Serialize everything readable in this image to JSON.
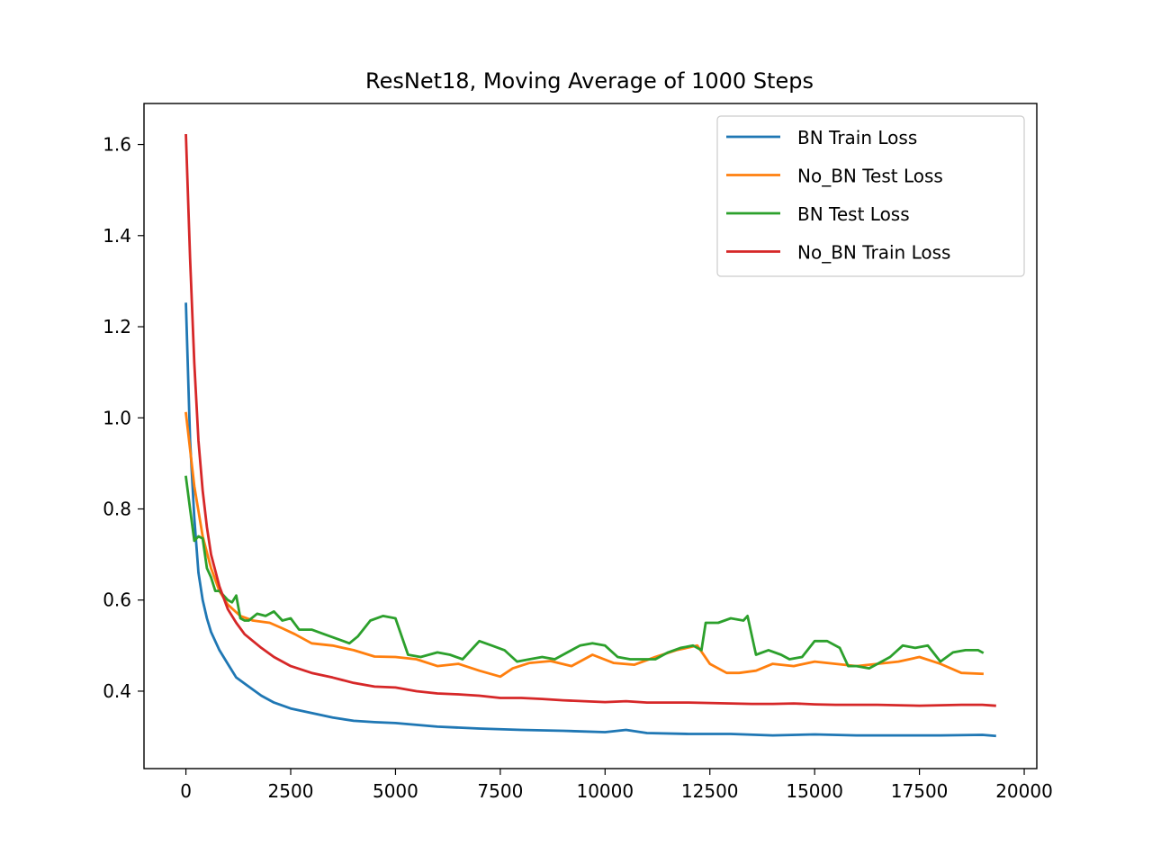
{
  "chart_data": {
    "type": "line",
    "title": "ResNet18, Moving Average of 1000 Steps",
    "xlabel": "",
    "ylabel": "",
    "xlim": [
      -1000,
      20300
    ],
    "ylim": [
      0.23,
      1.69
    ],
    "xticks": [
      0,
      2500,
      5000,
      7500,
      10000,
      12500,
      15000,
      17500,
      20000
    ],
    "xtick_labels": [
      "0",
      "2500",
      "5000",
      "7500",
      "10000",
      "12500",
      "15000",
      "17500",
      "20000"
    ],
    "yticks": [
      0.4,
      0.6,
      0.8,
      1.0,
      1.2,
      1.4,
      1.6
    ],
    "ytick_labels": [
      "0.4",
      "0.6",
      "0.8",
      "1.0",
      "1.2",
      "1.4",
      "1.6"
    ],
    "grid": false,
    "legend_position": "top-right",
    "series": [
      {
        "name": "BN Train Loss",
        "color": "#1f77b4",
        "x": [
          0,
          100,
          200,
          300,
          400,
          500,
          600,
          800,
          1000,
          1200,
          1500,
          1800,
          2100,
          2500,
          3000,
          3500,
          4000,
          4500,
          5000,
          5500,
          6000,
          7000,
          8000,
          9000,
          10000,
          10500,
          11000,
          12000,
          13000,
          14000,
          15000,
          16000,
          17000,
          18000,
          19000,
          19300
        ],
        "y": [
          1.25,
          0.95,
          0.78,
          0.66,
          0.6,
          0.56,
          0.53,
          0.49,
          0.46,
          0.43,
          0.41,
          0.39,
          0.375,
          0.362,
          0.352,
          0.342,
          0.335,
          0.332,
          0.33,
          0.326,
          0.322,
          0.318,
          0.315,
          0.313,
          0.31,
          0.315,
          0.308,
          0.306,
          0.306,
          0.303,
          0.305,
          0.303,
          0.303,
          0.303,
          0.304,
          0.302
        ]
      },
      {
        "name": "No_BN Test Loss",
        "color": "#ff7f0e",
        "x": [
          0,
          200,
          400,
          600,
          800,
          1000,
          1300,
          1600,
          2000,
          2300,
          2600,
          3000,
          3500,
          4000,
          4500,
          5000,
          5500,
          6000,
          6500,
          7000,
          7500,
          7800,
          8200,
          8700,
          9200,
          9700,
          10200,
          10700,
          11200,
          11700,
          12200,
          12500,
          12900,
          13200,
          13600,
          14000,
          14500,
          15000,
          15500,
          16000,
          16500,
          17000,
          17500,
          18000,
          18500,
          19000
        ],
        "y": [
          1.01,
          0.85,
          0.74,
          0.67,
          0.62,
          0.59,
          0.565,
          0.555,
          0.55,
          0.538,
          0.525,
          0.505,
          0.5,
          0.49,
          0.476,
          0.475,
          0.47,
          0.455,
          0.46,
          0.445,
          0.432,
          0.45,
          0.462,
          0.466,
          0.455,
          0.48,
          0.462,
          0.458,
          0.475,
          0.49,
          0.5,
          0.46,
          0.44,
          0.44,
          0.445,
          0.46,
          0.455,
          0.465,
          0.46,
          0.455,
          0.46,
          0.465,
          0.475,
          0.46,
          0.44,
          0.438
        ]
      },
      {
        "name": "BN Test Loss",
        "color": "#2ca02c",
        "x": [
          0,
          100,
          200,
          300,
          400,
          500,
          600,
          700,
          800,
          900,
          1000,
          1100,
          1200,
          1300,
          1400,
          1500,
          1700,
          1900,
          2100,
          2300,
          2500,
          2700,
          3000,
          3300,
          3600,
          3900,
          4100,
          4400,
          4700,
          5000,
          5300,
          5600,
          6000,
          6300,
          6600,
          7000,
          7300,
          7600,
          7900,
          8200,
          8500,
          8800,
          9100,
          9400,
          9700,
          10000,
          10300,
          10600,
          10900,
          11200,
          11500,
          11800,
          12100,
          12300,
          12400,
          12700,
          13000,
          13300,
          13400,
          13600,
          13900,
          14200,
          14400,
          14700,
          15000,
          15300,
          15600,
          15800,
          16000,
          16300,
          16500,
          16800,
          17100,
          17400,
          17700,
          18000,
          18300,
          18600,
          18900,
          19000
        ],
        "y": [
          0.87,
          0.8,
          0.73,
          0.74,
          0.735,
          0.67,
          0.65,
          0.62,
          0.62,
          0.61,
          0.6,
          0.595,
          0.61,
          0.56,
          0.555,
          0.555,
          0.57,
          0.565,
          0.575,
          0.555,
          0.56,
          0.535,
          0.535,
          0.525,
          0.515,
          0.505,
          0.52,
          0.555,
          0.565,
          0.56,
          0.48,
          0.475,
          0.485,
          0.48,
          0.47,
          0.51,
          0.5,
          0.49,
          0.465,
          0.47,
          0.475,
          0.47,
          0.485,
          0.5,
          0.505,
          0.5,
          0.475,
          0.47,
          0.47,
          0.47,
          0.485,
          0.495,
          0.5,
          0.49,
          0.55,
          0.55,
          0.56,
          0.555,
          0.565,
          0.48,
          0.49,
          0.48,
          0.47,
          0.475,
          0.51,
          0.51,
          0.495,
          0.455,
          0.455,
          0.45,
          0.46,
          0.475,
          0.5,
          0.495,
          0.5,
          0.465,
          0.485,
          0.49,
          0.49,
          0.485
        ]
      },
      {
        "name": "No_BN Train Loss",
        "color": "#d62728",
        "x": [
          0,
          100,
          200,
          300,
          400,
          500,
          600,
          800,
          1000,
          1200,
          1400,
          1600,
          1800,
          2100,
          2500,
          3000,
          3500,
          4000,
          4500,
          5000,
          5500,
          6000,
          6500,
          7000,
          7500,
          8000,
          8500,
          9000,
          9500,
          10000,
          10500,
          11000,
          11500,
          12000,
          12500,
          13000,
          13500,
          14000,
          14500,
          15000,
          15500,
          16000,
          16500,
          17000,
          17500,
          18000,
          18500,
          19000,
          19300
        ],
        "y": [
          1.62,
          1.35,
          1.12,
          0.95,
          0.84,
          0.76,
          0.7,
          0.63,
          0.58,
          0.55,
          0.525,
          0.51,
          0.495,
          0.475,
          0.455,
          0.44,
          0.43,
          0.418,
          0.41,
          0.408,
          0.4,
          0.395,
          0.393,
          0.39,
          0.385,
          0.385,
          0.383,
          0.38,
          0.378,
          0.376,
          0.378,
          0.375,
          0.375,
          0.375,
          0.374,
          0.373,
          0.372,
          0.372,
          0.373,
          0.371,
          0.37,
          0.37,
          0.37,
          0.369,
          0.368,
          0.369,
          0.37,
          0.37,
          0.368
        ]
      }
    ]
  }
}
